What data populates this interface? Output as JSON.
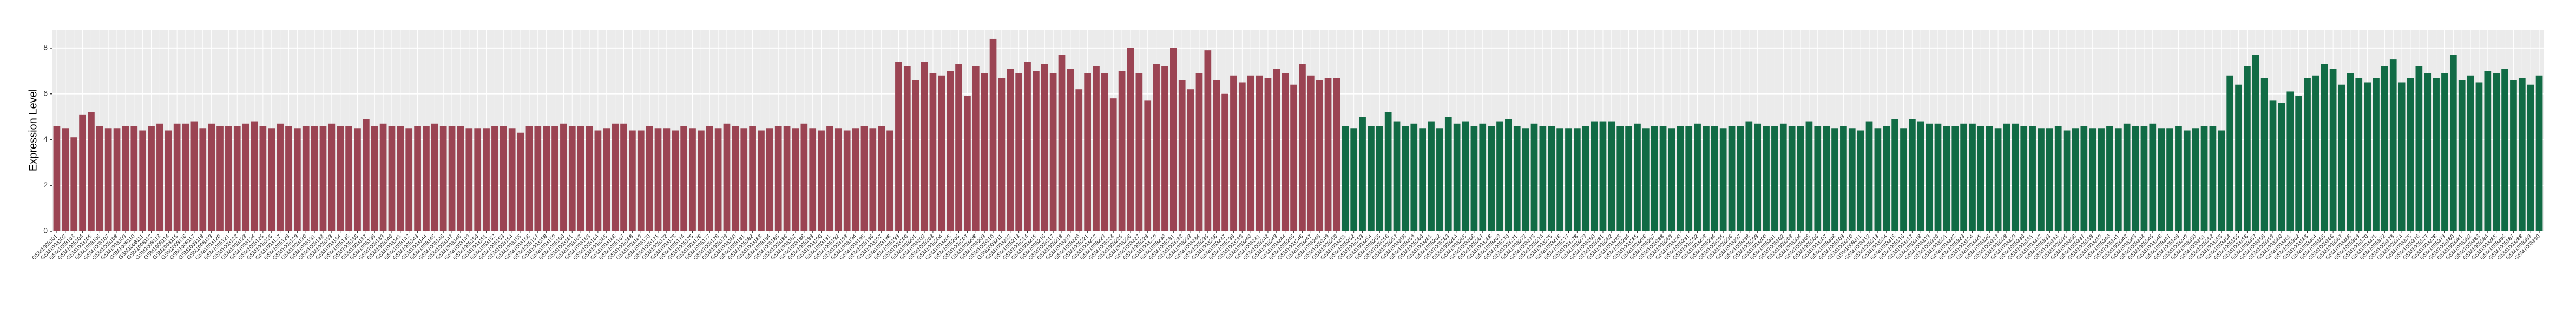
{
  "chart_data": {
    "type": "bar",
    "y_label": "Expression Level",
    "ylim": [
      0,
      8.8
    ],
    "yticks": [
      0,
      2,
      4,
      6,
      8
    ],
    "grid": true,
    "series": [
      {
        "color": "#9b4453",
        "categories": [
          "GSM1008101",
          "GSM1008102",
          "GSM1008103",
          "GSM1008104",
          "GSM1008105",
          "GSM1008106",
          "GSM1008107",
          "GSM1008108",
          "GSM1008109",
          "GSM1008110",
          "GSM1008111",
          "GSM1008112",
          "GSM1008113",
          "GSM1008114",
          "GSM1008115",
          "GSM1008116",
          "GSM1008117",
          "GSM1008118",
          "GSM1008119",
          "GSM1008120",
          "GSM1008121",
          "GSM1008122",
          "GSM1008123",
          "GSM1008124",
          "GSM1008125",
          "GSM1008126",
          "GSM1008127",
          "GSM1008128",
          "GSM1008129",
          "GSM1008130",
          "GSM1008131",
          "GSM1008132",
          "GSM1008133",
          "GSM1008134",
          "GSM1008135",
          "GSM1008136",
          "GSM1008137",
          "GSM1008138",
          "GSM1008139",
          "GSM1008140",
          "GSM1008141",
          "GSM1008142",
          "GSM1008143",
          "GSM1008144",
          "GSM1008145",
          "GSM1008146",
          "GSM1008147",
          "GSM1008148",
          "GSM1008149",
          "GSM1008150",
          "GSM1008151",
          "GSM1008152",
          "GSM1008153",
          "GSM1008154",
          "GSM1008155",
          "GSM1008156",
          "GSM1008157",
          "GSM1008158",
          "GSM1008159",
          "GSM1008160",
          "GSM1008161",
          "GSM1008162",
          "GSM1008163",
          "GSM1008164",
          "GSM1008165",
          "GSM1008166",
          "GSM1008167",
          "GSM1008168",
          "GSM1008169",
          "GSM1008170",
          "GSM1008171",
          "GSM1008172",
          "GSM1008173",
          "GSM1008174",
          "GSM1008175",
          "GSM1008176",
          "GSM1008177",
          "GSM1008178",
          "GSM1008179",
          "GSM1008180",
          "GSM1008181",
          "GSM1008182",
          "GSM1008183",
          "GSM1008184",
          "GSM1008185",
          "GSM1008186",
          "GSM1008187",
          "GSM1008188",
          "GSM1008189",
          "GSM1008190",
          "GSM1008191",
          "GSM1008192",
          "GSM1008193",
          "GSM1008194",
          "GSM1008195",
          "GSM1008196",
          "GSM1008197",
          "GSM1008198",
          "GSM1008199",
          "GSM1008200",
          "GSM1008201",
          "GSM1008202",
          "GSM1008203",
          "GSM1008204",
          "GSM1008205",
          "GSM1008206",
          "GSM1008207",
          "GSM1008208",
          "GSM1008209",
          "GSM1008210",
          "GSM1008211",
          "GSM1008212",
          "GSM1008213",
          "GSM1008214",
          "GSM1008215",
          "GSM1008216",
          "GSM1008217",
          "GSM1008218",
          "GSM1008219",
          "GSM1008220",
          "GSM1008221",
          "GSM1008222",
          "GSM1008223",
          "GSM1008224",
          "GSM1008225",
          "GSM1008226",
          "GSM1008227",
          "GSM1008228",
          "GSM1008229",
          "GSM1008230",
          "GSM1008231",
          "GSM1008232",
          "GSM1008233",
          "GSM1008234",
          "GSM1008235",
          "GSM1008236",
          "GSM1008237",
          "GSM1008238",
          "GSM1008239",
          "GSM1008240",
          "GSM1008241",
          "GSM1008242",
          "GSM1008243",
          "GSM1008244",
          "GSM1008245",
          "GSM1008246",
          "GSM1008247",
          "GSM1008248",
          "GSM1008249",
          "GSM1008250"
        ],
        "values": [
          4.6,
          4.5,
          4.1,
          5.1,
          5.2,
          4.6,
          4.5,
          4.5,
          4.6,
          4.6,
          4.4,
          4.6,
          4.7,
          4.4,
          4.7,
          4.7,
          4.8,
          4.5,
          4.7,
          4.6,
          4.6,
          4.6,
          4.7,
          4.8,
          4.6,
          4.5,
          4.7,
          4.6,
          4.5,
          4.6,
          4.6,
          4.6,
          4.7,
          4.6,
          4.6,
          4.5,
          4.9,
          4.6,
          4.7,
          4.6,
          4.6,
          4.5,
          4.6,
          4.6,
          4.7,
          4.6,
          4.6,
          4.6,
          4.5,
          4.5,
          4.5,
          4.6,
          4.6,
          4.5,
          4.3,
          4.6,
          4.6,
          4.6,
          4.6,
          4.7,
          4.6,
          4.6,
          4.6,
          4.4,
          4.5,
          4.7,
          4.7,
          4.4,
          4.4,
          4.6,
          4.5,
          4.5,
          4.4,
          4.6,
          4.5,
          4.4,
          4.6,
          4.5,
          4.7,
          4.6,
          4.5,
          4.6,
          4.4,
          4.5,
          4.6,
          4.6,
          4.5,
          4.7,
          4.5,
          4.4,
          4.6,
          4.5,
          4.4,
          4.5,
          4.6,
          4.5,
          4.6,
          4.4,
          7.4,
          7.2,
          6.6,
          7.4,
          6.9,
          6.8,
          7.0,
          7.3,
          5.9,
          7.2,
          6.9,
          8.4,
          6.7,
          7.1,
          6.9,
          7.4,
          7.0,
          7.3,
          6.9,
          7.7,
          7.1,
          6.2,
          6.9,
          7.2,
          6.9,
          5.8,
          7.0,
          8.0,
          6.9,
          5.7,
          7.3,
          7.2,
          8.0,
          6.6,
          6.2,
          6.9,
          7.9,
          6.6,
          6.0,
          6.8,
          6.5,
          6.8,
          6.8,
          6.7,
          7.1,
          6.9,
          6.4,
          7.3,
          6.8,
          6.6,
          6.7,
          6.7
        ]
      },
      {
        "color": "#116b45",
        "categories": [
          "GSM1008251",
          "GSM1008252",
          "GSM1008253",
          "GSM1008254",
          "GSM1008255",
          "GSM1008256",
          "GSM1008257",
          "GSM1008258",
          "GSM1008259",
          "GSM1008260",
          "GSM1008261",
          "GSM1008262",
          "GSM1008263",
          "GSM1008264",
          "GSM1008265",
          "GSM1008266",
          "GSM1008267",
          "GSM1008268",
          "GSM1008269",
          "GSM1008270",
          "GSM1008271",
          "GSM1008272",
          "GSM1008273",
          "GSM1008274",
          "GSM1008275",
          "GSM1008276",
          "GSM1008277",
          "GSM1008278",
          "GSM1008279",
          "GSM1008280",
          "GSM1008281",
          "GSM1008282",
          "GSM1008283",
          "GSM1008284",
          "GSM1008285",
          "GSM1008286",
          "GSM1008287",
          "GSM1008288",
          "GSM1008289",
          "GSM1008290",
          "GSM1008291",
          "GSM1008292",
          "GSM1008293",
          "GSM1008294",
          "GSM1008295",
          "GSM1008296",
          "GSM1008297",
          "GSM1008298",
          "GSM1008299",
          "GSM1008300",
          "GSM1008301",
          "GSM1008302",
          "GSM1008303",
          "GSM1008304",
          "GSM1008305",
          "GSM1008306",
          "GSM1008307",
          "GSM1008308",
          "GSM1008309",
          "GSM1008310",
          "GSM1008311",
          "GSM1008312",
          "GSM1008313",
          "GSM1008314",
          "GSM1008315",
          "GSM1008316",
          "GSM1008317",
          "GSM1008318",
          "GSM1008319",
          "GSM1008320",
          "GSM1008321",
          "GSM1008322",
          "GSM1008323",
          "GSM1008324",
          "GSM1008325",
          "GSM1008326",
          "GSM1008327",
          "GSM1008328",
          "GSM1008329",
          "GSM1008330",
          "GSM1008331",
          "GSM1008332",
          "GSM1008333",
          "GSM1008334",
          "GSM1008335",
          "GSM1008336",
          "GSM1008337",
          "GSM1008338",
          "GSM1008339",
          "GSM1008340",
          "GSM1008341",
          "GSM1008342",
          "GSM1008343",
          "GSM1008344",
          "GSM1008345",
          "GSM1008346",
          "GSM1008347",
          "GSM1008348",
          "GSM1008349",
          "GSM1008350",
          "GSM1008351",
          "GSM1008352",
          "GSM1008353",
          "GSM1008354",
          "GSM1008355",
          "GSM1008356",
          "GSM1008357",
          "GSM1008358",
          "GSM1008359",
          "GSM1008360",
          "GSM1008361",
          "GSM1008362",
          "GSM1008363",
          "GSM1008364",
          "GSM1008365",
          "GSM1008366",
          "GSM1008367",
          "GSM1008368",
          "GSM1008369",
          "GSM1008370",
          "GSM1008371",
          "GSM1008372",
          "GSM1008373",
          "GSM1008374",
          "GSM1008375",
          "GSM1008376",
          "GSM1008377",
          "GSM1008378",
          "GSM1008379",
          "GSM1008380",
          "GSM1008381",
          "GSM1008382",
          "GSM1008383",
          "GSM1008384",
          "GSM1008385",
          "GSM1008386",
          "GSM1008387",
          "GSM1008388",
          "GSM1008389",
          "GSM1008390"
        ],
        "values": [
          4.6,
          4.5,
          5.0,
          4.6,
          4.6,
          5.2,
          4.8,
          4.6,
          4.7,
          4.5,
          4.8,
          4.5,
          5.0,
          4.7,
          4.8,
          4.6,
          4.7,
          4.6,
          4.8,
          4.9,
          4.6,
          4.5,
          4.7,
          4.6,
          4.6,
          4.5,
          4.5,
          4.5,
          4.6,
          4.8,
          4.8,
          4.8,
          4.6,
          4.6,
          4.7,
          4.5,
          4.6,
          4.6,
          4.5,
          4.6,
          4.6,
          4.7,
          4.6,
          4.6,
          4.5,
          4.6,
          4.6,
          4.8,
          4.7,
          4.6,
          4.6,
          4.7,
          4.6,
          4.6,
          4.8,
          4.6,
          4.6,
          4.5,
          4.6,
          4.5,
          4.4,
          4.8,
          4.5,
          4.6,
          4.9,
          4.5,
          4.9,
          4.8,
          4.7,
          4.7,
          4.6,
          4.6,
          4.7,
          4.7,
          4.6,
          4.6,
          4.5,
          4.7,
          4.7,
          4.6,
          4.6,
          4.5,
          4.5,
          4.6,
          4.4,
          4.5,
          4.6,
          4.5,
          4.5,
          4.6,
          4.5,
          4.7,
          4.6,
          4.6,
          4.7,
          4.5,
          4.5,
          4.6,
          4.4,
          4.5,
          4.6,
          4.6,
          4.4,
          6.8,
          6.4,
          7.2,
          7.7,
          6.7,
          5.7,
          5.6,
          6.1,
          5.9,
          6.7,
          6.8,
          7.3,
          7.1,
          6.4,
          6.9,
          6.7,
          6.5,
          6.7,
          7.2,
          7.5,
          6.5,
          6.7,
          7.2,
          6.9,
          6.7,
          6.9,
          7.7,
          6.6,
          6.8,
          6.5,
          7.0,
          6.9,
          7.1,
          6.6,
          6.7,
          6.4,
          6.8
        ]
      }
    ]
  }
}
